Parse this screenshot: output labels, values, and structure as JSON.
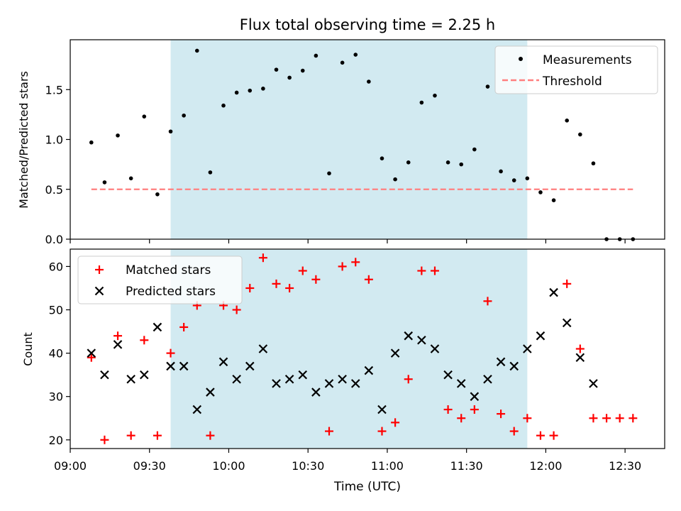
{
  "title": "Flux total observing time = 2.25 h",
  "colors": {
    "band": "#add8e6",
    "measurement": "#000000",
    "threshold": "#ff7f7f",
    "matched": "#ff0000",
    "predicted": "#000000"
  },
  "chart_data": [
    {
      "type": "scatter",
      "ylabel": "Matched/Predicted stars",
      "xlim": [
        "09:00",
        "12:45"
      ],
      "ylim": [
        0,
        2.0
      ],
      "yticks": [
        0.0,
        0.5,
        1.0,
        1.5
      ],
      "ytick_labels": [
        "0.0",
        "0.5",
        "1.0",
        "1.5"
      ],
      "highlight_band": {
        "start": "09:38",
        "end": "11:53"
      },
      "legend": {
        "placement": "top-right",
        "entries": [
          "Measurements",
          "Threshold"
        ]
      },
      "threshold": {
        "name": "Threshold",
        "y": 0.5,
        "x_start": "09:08",
        "x_end": "12:33"
      },
      "series": [
        {
          "name": "Measurements",
          "x": [
            "09:08",
            "09:13",
            "09:18",
            "09:23",
            "09:28",
            "09:33",
            "09:38",
            "09:43",
            "09:48",
            "09:53",
            "09:58",
            "10:03",
            "10:08",
            "10:13",
            "10:18",
            "10:23",
            "10:28",
            "10:33",
            "10:38",
            "10:43",
            "10:48",
            "10:53",
            "10:58",
            "11:03",
            "11:08",
            "11:13",
            "11:18",
            "11:23",
            "11:28",
            "11:33",
            "11:38",
            "11:43",
            "11:48",
            "11:53",
            "11:58",
            "12:03",
            "12:08",
            "12:13",
            "12:18",
            "12:23",
            "12:28",
            "12:33"
          ],
          "y": [
            0.97,
            0.57,
            1.04,
            0.61,
            1.23,
            0.45,
            1.08,
            1.24,
            1.89,
            0.67,
            1.34,
            1.47,
            1.49,
            1.51,
            1.7,
            1.62,
            1.69,
            1.84,
            0.66,
            1.77,
            1.85,
            1.58,
            0.81,
            0.6,
            0.77,
            1.37,
            1.44,
            0.77,
            0.75,
            0.9,
            1.53,
            0.68,
            0.59,
            0.61,
            0.47,
            0.39,
            1.19,
            1.05,
            0.76,
            0.0,
            0.0,
            0.0
          ]
        }
      ]
    },
    {
      "type": "scatter",
      "ylabel": "Count",
      "xlabel": "Time (UTC)",
      "xlim": [
        "09:00",
        "12:45"
      ],
      "xticks": [
        "09:00",
        "09:30",
        "10:00",
        "10:30",
        "11:00",
        "11:30",
        "12:00",
        "12:30"
      ],
      "ylim": [
        18,
        64
      ],
      "yticks": [
        20,
        30,
        40,
        50,
        60
      ],
      "ytick_labels": [
        "20",
        "30",
        "40",
        "50",
        "60"
      ],
      "highlight_band": {
        "start": "09:38",
        "end": "11:53"
      },
      "legend": {
        "placement": "top-left",
        "entries": [
          "Matched stars",
          "Predicted stars"
        ]
      },
      "series": [
        {
          "name": "Matched stars",
          "marker": "+",
          "x": [
            "09:08",
            "09:13",
            "09:18",
            "09:23",
            "09:28",
            "09:33",
            "09:38",
            "09:43",
            "09:48",
            "09:53",
            "09:58",
            "10:03",
            "10:08",
            "10:13",
            "10:18",
            "10:23",
            "10:28",
            "10:33",
            "10:38",
            "10:43",
            "10:48",
            "10:53",
            "10:58",
            "11:03",
            "11:08",
            "11:13",
            "11:18",
            "11:23",
            "11:28",
            "11:33",
            "11:38",
            "11:43",
            "11:48",
            "11:53",
            "11:58",
            "12:03",
            "12:08",
            "12:13",
            "12:18",
            "12:23",
            "12:28",
            "12:33"
          ],
          "y": [
            39,
            20,
            44,
            21,
            43,
            21,
            40,
            46,
            51,
            21,
            51,
            50,
            55,
            62,
            56,
            55,
            59,
            57,
            22,
            60,
            61,
            57,
            22,
            24,
            34,
            59,
            59,
            27,
            25,
            27,
            52,
            26,
            22,
            25,
            21,
            21,
            56,
            41,
            25,
            25,
            25,
            25
          ]
        },
        {
          "name": "Predicted stars",
          "marker": "x",
          "x": [
            "09:08",
            "09:13",
            "09:18",
            "09:23",
            "09:28",
            "09:33",
            "09:38",
            "09:43",
            "09:48",
            "09:53",
            "09:58",
            "10:03",
            "10:08",
            "10:13",
            "10:18",
            "10:23",
            "10:28",
            "10:33",
            "10:38",
            "10:43",
            "10:48",
            "10:53",
            "10:58",
            "11:03",
            "11:08",
            "11:13",
            "11:18",
            "11:23",
            "11:28",
            "11:33",
            "11:38",
            "11:43",
            "11:48",
            "11:53",
            "11:58",
            "12:03",
            "12:08",
            "12:13",
            "12:18"
          ],
          "y": [
            40,
            35,
            42,
            34,
            35,
            46,
            37,
            37,
            27,
            31,
            38,
            34,
            37,
            41,
            33,
            34,
            35,
            31,
            33,
            34,
            33,
            36,
            27,
            40,
            44,
            43,
            41,
            35,
            33,
            30,
            34,
            38,
            37,
            41,
            44,
            54,
            47,
            39,
            33
          ]
        }
      ]
    }
  ]
}
